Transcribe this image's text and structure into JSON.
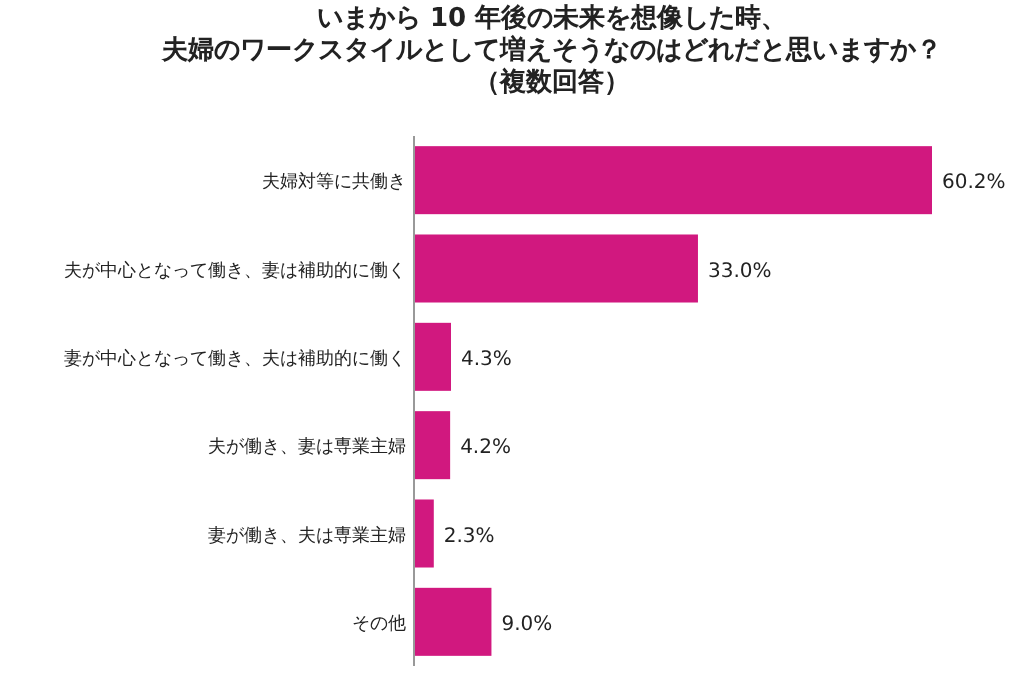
{
  "chart_data": {
    "type": "bar",
    "orientation": "horizontal",
    "title": "いまから 10 年後の未来を想像した時、",
    "subtitle": "夫婦のワークスタイルとして増えそうなのはどれだと思いますか？",
    "annotations": [
      "（複数回答）"
    ],
    "categories": [
      "夫婦対等に共働き",
      "夫が中心となって働き、妻は補助的に働く",
      "妻が中心となって働き、夫は補助的に働く",
      "夫が働き、妻は専業主婦",
      "妻が働き、夫は専業主婦",
      "その他"
    ],
    "values": [
      60.2,
      33.0,
      4.3,
      4.2,
      2.3,
      9.0
    ],
    "value_labels": [
      "60.2%",
      "33.0%",
      "4.3%",
      "4.2%",
      "2.3%",
      "9.0%"
    ],
    "color": "#d1187f"
  }
}
